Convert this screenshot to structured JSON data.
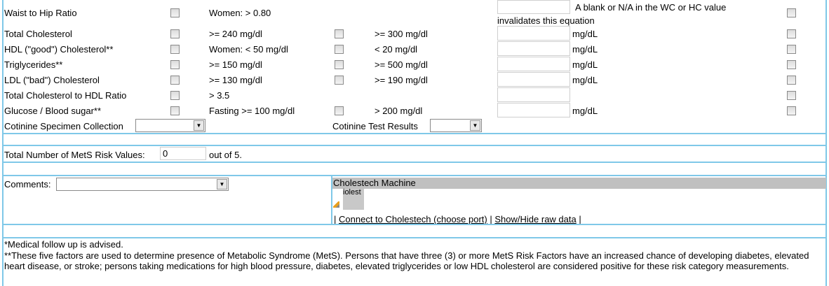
{
  "rows": [
    {
      "label": "Waist to Hip Ratio",
      "crit1": "Women: > 0.80",
      "crit2": "",
      "unit": ""
    },
    {
      "label": "Total Cholesterol",
      "crit1": ">= 240 mg/dl",
      "crit2": ">= 300 mg/dl",
      "unit": "mg/dL"
    },
    {
      "label": "HDL (\"good\") Cholesterol**",
      "crit1": "Women: < 50 mg/dl",
      "crit2": "< 20 mg/dl",
      "unit": "mg/dL"
    },
    {
      "label": "Triglycerides**",
      "crit1": ">= 150 mg/dl",
      "crit2": ">= 500 mg/dl",
      "unit": "mg/dL"
    },
    {
      "label": "LDL (\"bad\") Cholesterol",
      "crit1": ">= 130 mg/dl",
      "crit2": ">= 190 mg/dl",
      "unit": "mg/dL"
    },
    {
      "label": "Total Cholesterol to HDL Ratio",
      "crit1": "> 3.5",
      "crit2": "",
      "unit": ""
    },
    {
      "label": "Glucose / Blood sugar**",
      "crit1": "Fasting >= 100 mg/dl",
      "crit2": "> 200 mg/dl",
      "unit": "mg/dL"
    }
  ],
  "whr_note": "A blank or N/A in the WC or HC value",
  "whr_note2": "invalidates this equation",
  "cotinine_collection_label": "Cotinine Specimen Collection",
  "cotinine_results_label": "Cotinine Test Results",
  "mets_label": "Total Number of MetS Risk Values:",
  "mets_value": "0",
  "mets_suffix": "out of 5.",
  "comments_label": "Comments:",
  "cholestech": {
    "title": "Cholestech Machine",
    "icon_text": "iolest",
    "connect": "Connect to Cholestech (choose port)",
    "toggle": "Show/Hide raw data",
    "sep": "|"
  },
  "footer": {
    "line1": "*Medical follow up is advised.",
    "line2": "**These five factors are used to determine presence of Metabolic Syndrome (MetS). Persons that have three (3) or more MetS Risk Factors have an increased chance of developing diabetes, elevated heart disease, or stroke; persons taking medications for high blood pressure, diabetes, elevated triglycerides or low HDL cholesterol are considered positive for these risk category measurements."
  }
}
